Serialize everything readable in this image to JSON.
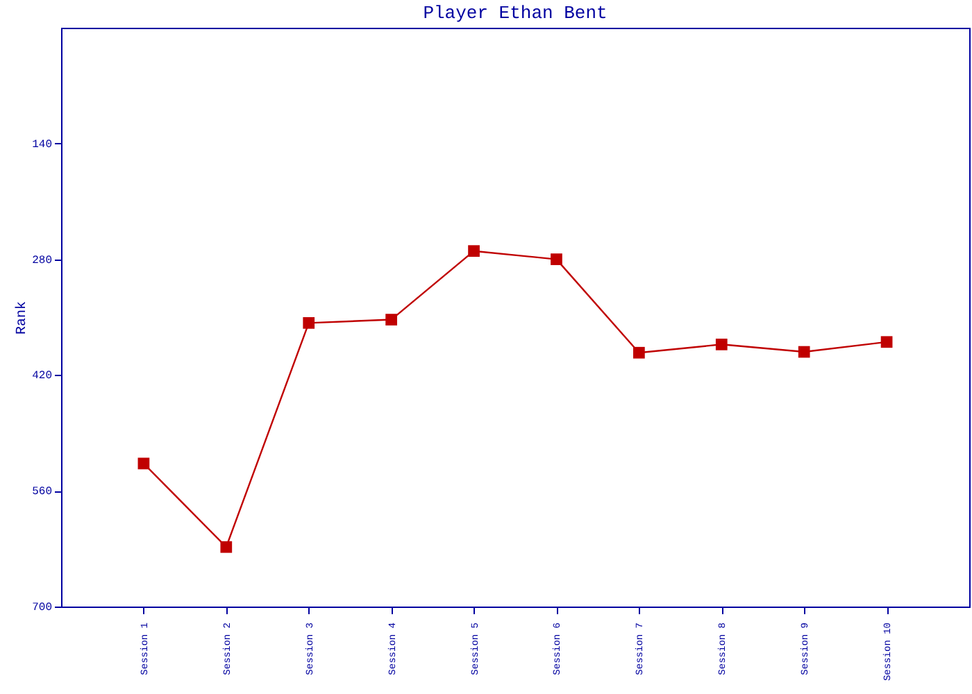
{
  "chart_data": {
    "type": "line",
    "title": "Player Ethan Bent",
    "ylabel": "Rank",
    "categories": [
      "Session 1",
      "Session 2",
      "Session 3",
      "Session 4",
      "Session 5",
      "Session 6",
      "Session 7",
      "Session 8",
      "Session 9",
      "Session 10"
    ],
    "series": [
      {
        "color": "#c00000",
        "values": [
          527,
          628,
          357,
          353,
          270,
          280,
          393,
          383,
          392,
          380
        ]
      }
    ],
    "ylim": [
      700,
      0
    ],
    "yticks": [
      140,
      280,
      420,
      560,
      700
    ],
    "grid": false,
    "marker": "square",
    "line_style": "solid"
  }
}
